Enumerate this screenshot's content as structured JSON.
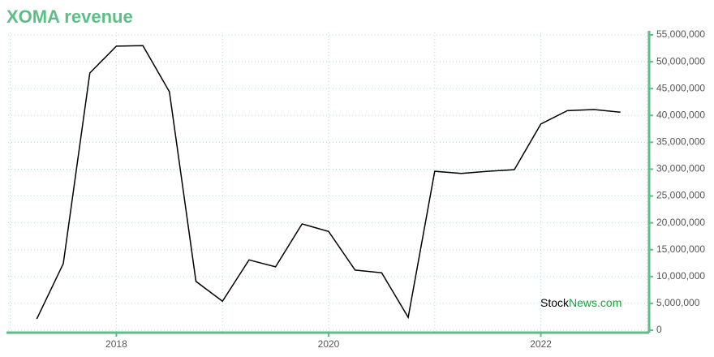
{
  "chart_data": {
    "type": "line",
    "title": "XOMA revenue",
    "watermark": [
      "Stock",
      "News.com"
    ],
    "x": [
      2017.25,
      2017.5,
      2017.75,
      2018.0,
      2018.25,
      2018.5,
      2018.75,
      2019.0,
      2019.25,
      2019.5,
      2019.75,
      2020.0,
      2020.25,
      2020.5,
      2020.75,
      2021.0,
      2021.25,
      2021.5,
      2021.75,
      2022.0,
      2022.25,
      2022.5,
      2022.75
    ],
    "series": [
      {
        "name": "XOMA revenue",
        "color": "#000000",
        "values": [
          2100000,
          12400000,
          47900000,
          52900000,
          53000000,
          44400000,
          9100000,
          5400000,
          13100000,
          11800000,
          19800000,
          18400000,
          11200000,
          10700000,
          2400000,
          29600000,
          29200000,
          29600000,
          29900000,
          38400000,
          40900000,
          41100000,
          40600000
        ]
      }
    ],
    "xlim": [
      2016.98,
      2023.02
    ],
    "xticks": [
      2018,
      2020,
      2022
    ],
    "x_minor_grid": [
      2017,
      2019,
      2021,
      2023
    ],
    "ylim": [
      0,
      55000000
    ],
    "yticks": [
      0,
      {
        "value": 5000000,
        "label": "5,000,000"
      },
      {
        "value": 10000000,
        "label": "10,000,000"
      },
      {
        "value": 15000000,
        "label": "15,000,000"
      },
      {
        "value": 20000000,
        "label": "20,000,000"
      },
      {
        "value": 25000000,
        "label": "25,000,000"
      },
      {
        "value": 30000000,
        "label": "30,000,000"
      },
      {
        "value": 35000000,
        "label": "35,000,000"
      },
      {
        "value": 40000000,
        "label": "40,000,000"
      },
      {
        "value": 45000000,
        "label": "45,000,000"
      },
      {
        "value": 50000000,
        "label": "50,000,000"
      },
      {
        "value": 55000000,
        "label": "55,000,000"
      }
    ],
    "grid": true,
    "y_axis_side": "right",
    "accent": "#5cbf86"
  }
}
